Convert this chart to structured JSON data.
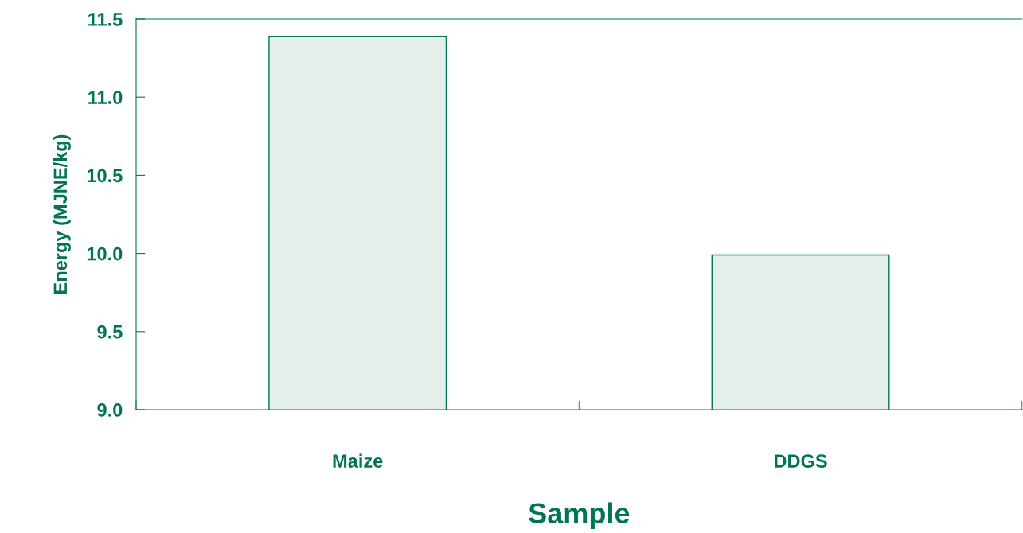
{
  "chart_data": {
    "type": "bar",
    "xlabel": "Sample",
    "ylabel": "Energy (MJNE/kg)",
    "categories": [
      "Maize",
      "DDGS"
    ],
    "values": [
      11.39,
      9.99
    ],
    "color": "#e5efe9",
    "ylim": [
      9.0,
      11.5
    ],
    "yticks": [
      {
        "value": 9.0,
        "label": "9.0"
      },
      {
        "value": 9.5,
        "label": "9.5"
      },
      {
        "value": 10.0,
        "label": "10.0"
      },
      {
        "value": 10.5,
        "label": "10.5"
      },
      {
        "value": 11.0,
        "label": "11.0"
      },
      {
        "value": 11.5,
        "label": "11.5"
      }
    ],
    "grid": false,
    "legend": false
  }
}
